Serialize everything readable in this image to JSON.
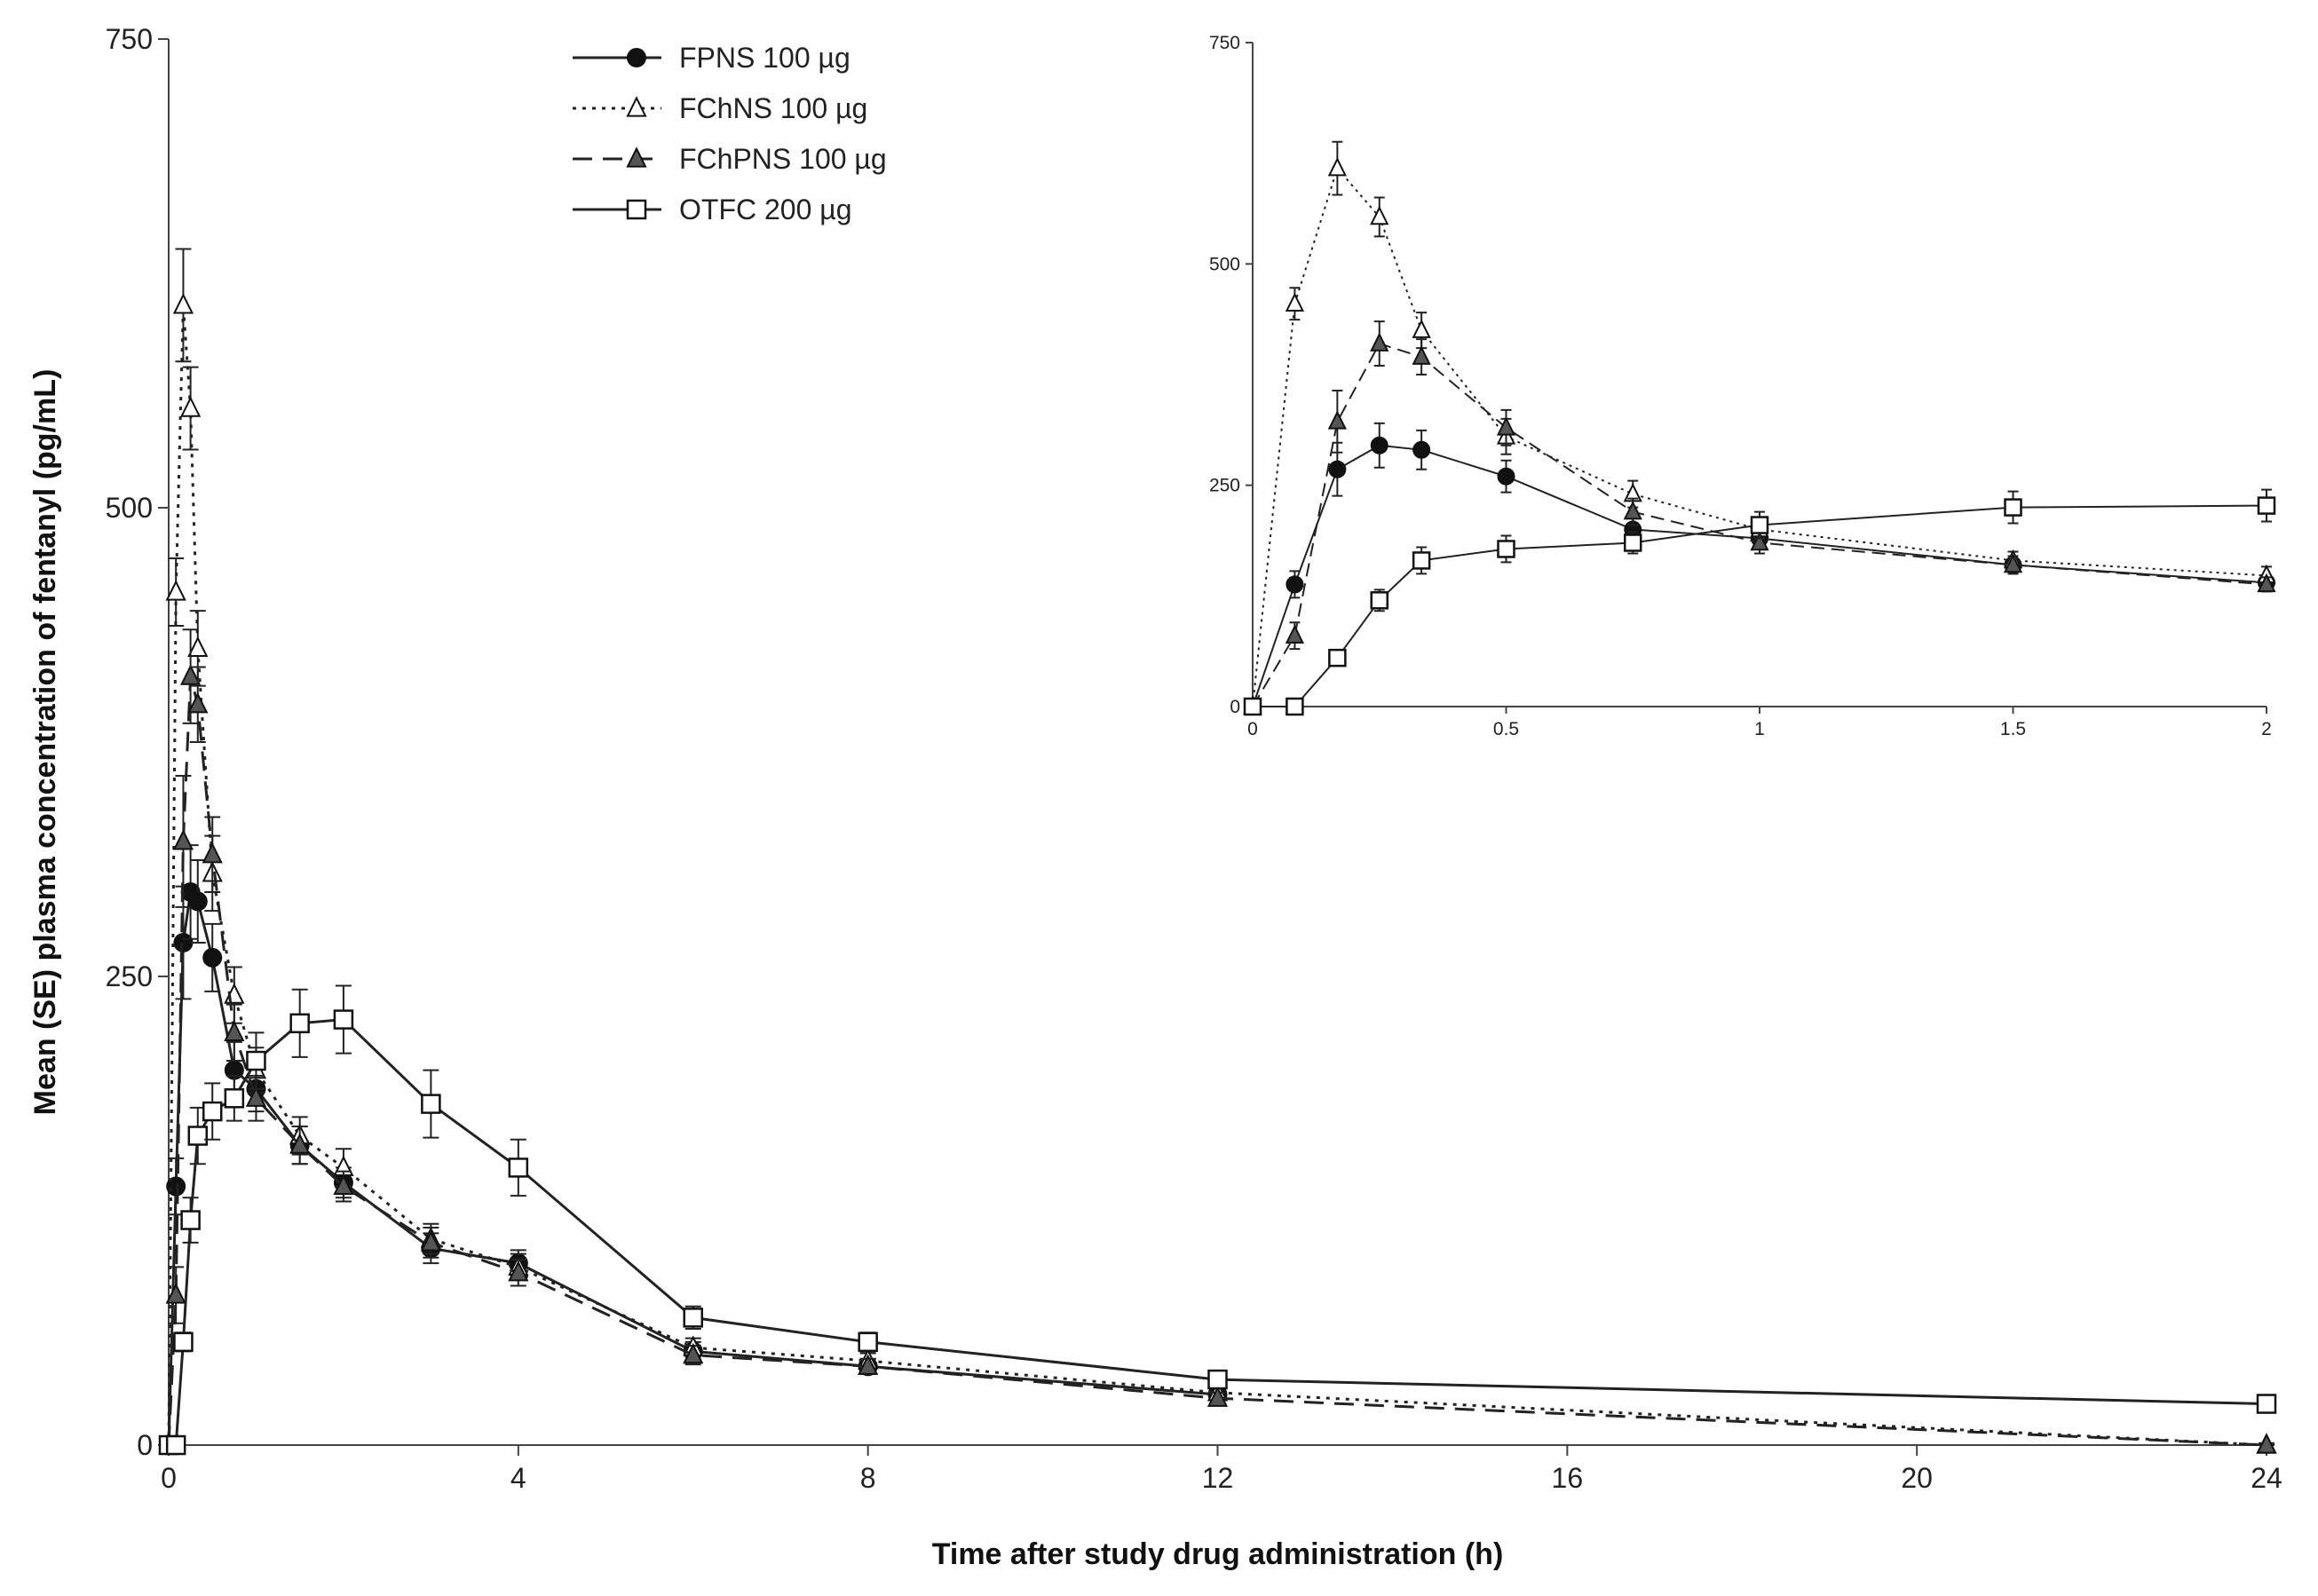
{
  "chart_data": [
    {
      "id": "main",
      "type": "line",
      "title": "",
      "xlabel": "Time after study drug administration (h)",
      "ylabel": "Mean (SE) plasma concentration of fentanyl (pg/mL)",
      "xlim": [
        0,
        24
      ],
      "ylim": [
        0,
        750
      ],
      "xticks": [
        "0",
        "4",
        "8",
        "12",
        "16",
        "20",
        "24"
      ],
      "yticks": [
        "0",
        "250",
        "500",
        "750"
      ],
      "grid": false,
      "legend_position": "top-center",
      "series": [
        {
          "name": "FPNS 100 µg",
          "marker": "filled-circle",
          "line": "solid",
          "x": [
            0,
            0.083,
            0.167,
            0.25,
            0.333,
            0.5,
            0.75,
            1,
            1.5,
            2,
            3,
            4,
            6,
            8,
            12
          ],
          "y": [
            0,
            138,
            268,
            295,
            290,
            260,
            200,
            190,
            160,
            140,
            105,
            97,
            50,
            42,
            27
          ],
          "se": [
            2,
            15,
            30,
            25,
            22,
            18,
            15,
            12,
            10,
            8,
            8,
            7,
            5,
            4,
            3
          ]
        },
        {
          "name": "FChNS 100 µg",
          "marker": "open-triangle",
          "line": "dotted",
          "x": [
            0,
            0.083,
            0.167,
            0.25,
            0.333,
            0.5,
            0.75,
            1,
            1.5,
            2,
            3,
            4,
            6,
            8,
            12,
            24
          ],
          "y": [
            0,
            455,
            608,
            553,
            425,
            305,
            240,
            200,
            165,
            148,
            110,
            95,
            52,
            45,
            28,
            0
          ],
          "se": [
            2,
            18,
            30,
            22,
            20,
            20,
            15,
            12,
            10,
            10,
            8,
            7,
            5,
            4,
            3,
            1
          ]
        },
        {
          "name": "FChPNS 100 µg",
          "marker": "filled-triangle",
          "line": "dashed",
          "x": [
            0,
            0.083,
            0.167,
            0.25,
            0.333,
            0.5,
            0.75,
            1,
            1.5,
            2,
            3,
            4,
            6,
            8,
            12,
            24
          ],
          "y": [
            0,
            80,
            322,
            410,
            395,
            315,
            220,
            185,
            160,
            138,
            108,
            92,
            48,
            42,
            25,
            0
          ],
          "se": [
            2,
            15,
            35,
            25,
            20,
            20,
            15,
            12,
            10,
            8,
            8,
            7,
            5,
            4,
            3,
            1
          ]
        },
        {
          "name": "OTFC 200 µg",
          "marker": "open-square",
          "line": "solid",
          "x": [
            0,
            0.083,
            0.167,
            0.25,
            0.333,
            0.5,
            0.75,
            1,
            1.5,
            2,
            3,
            4,
            6,
            8,
            12,
            24
          ],
          "y": [
            0,
            0,
            55,
            120,
            165,
            178,
            185,
            205,
            225,
            227,
            182,
            148,
            68,
            55,
            35,
            22
          ],
          "se": [
            1,
            1,
            5,
            12,
            15,
            15,
            12,
            15,
            18,
            18,
            18,
            15,
            6,
            5,
            3,
            3
          ]
        }
      ]
    },
    {
      "id": "inset",
      "type": "line",
      "title": "",
      "xlabel": "",
      "ylabel": "",
      "xlim": [
        0,
        2
      ],
      "ylim": [
        0,
        750
      ],
      "xticks": [
        "0",
        "0.5",
        "1",
        "1.5",
        "2"
      ],
      "yticks": [
        "0",
        "250",
        "500",
        "750"
      ],
      "grid": false,
      "legend_position": "none",
      "series_source": "same as main chart, restricted to x between 0 and 2"
    }
  ]
}
